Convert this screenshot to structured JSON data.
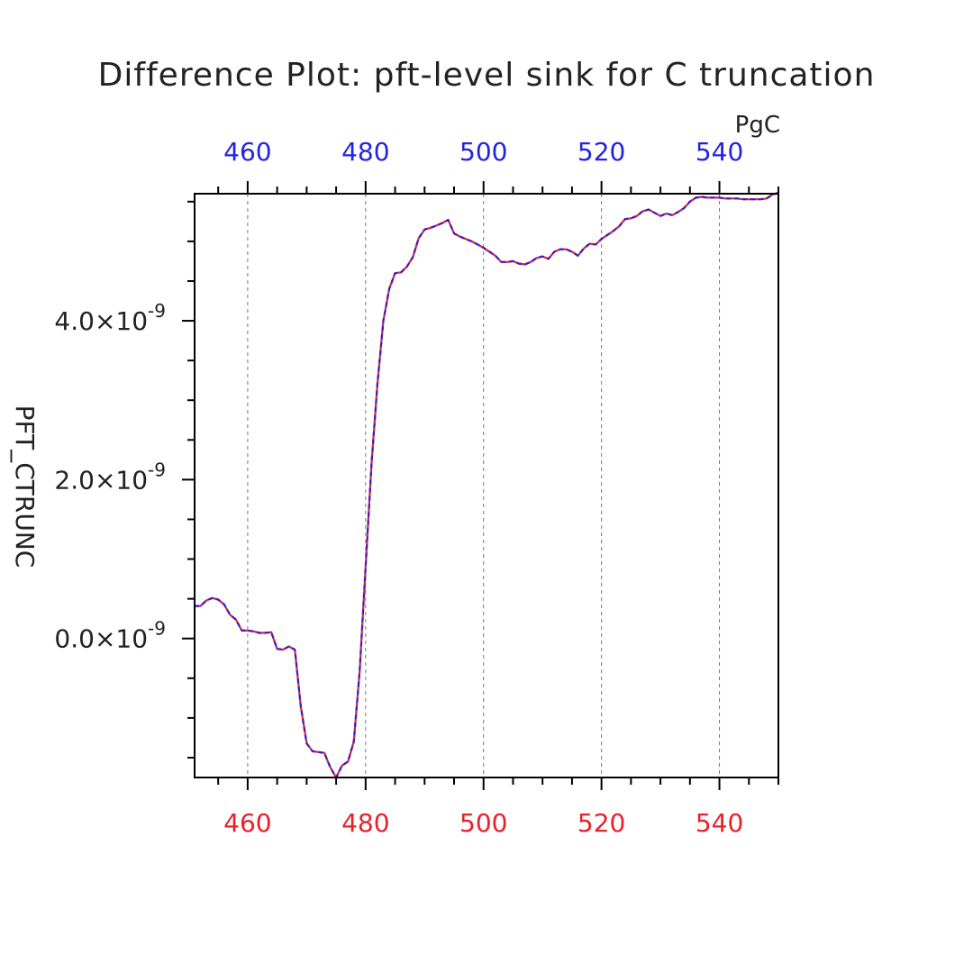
{
  "chart_data": {
    "type": "line",
    "title": "Difference Plot: pft-level sink for C truncation",
    "ylabel": "PFT_CTRUNC",
    "x_top_unit": "PgC",
    "xlim": [
      451,
      550
    ],
    "ylim": [
      -1.75e-09,
      5.6e-09
    ],
    "x_ticks": [
      460,
      480,
      500,
      520,
      540
    ],
    "x_tick_labels": [
      "460",
      "480",
      "500",
      "520",
      "540"
    ],
    "y_ticks": [
      0,
      2e-09,
      4e-09
    ],
    "y_tick_labels": [
      {
        "mantissa": "0.0",
        "times": "×10",
        "exp": "-9"
      },
      {
        "mantissa": "2.0",
        "times": "×10",
        "exp": "-9"
      },
      {
        "mantissa": "4.0",
        "times": "×10",
        "exp": "-9"
      }
    ],
    "grid": "vertical-dashed",
    "colors": {
      "bottom_axis": "#e8202a",
      "top_axis": "#2323e0",
      "series_a": "#e8202a",
      "series_b": "#2323e0"
    },
    "series": [
      {
        "x": [
          451,
          452,
          453,
          454,
          455,
          456,
          457,
          458,
          459,
          460,
          461,
          462,
          463,
          464,
          465,
          466,
          467,
          468,
          469,
          470,
          471,
          472,
          473,
          474,
          475,
          476,
          477,
          478,
          479,
          480,
          481,
          482,
          483,
          484,
          485,
          486,
          487,
          488,
          489,
          490,
          491,
          492,
          493,
          494,
          495,
          496,
          497,
          498,
          499,
          500,
          501,
          502,
          503,
          504,
          505,
          506,
          507,
          508,
          509,
          510,
          511,
          512,
          513,
          514,
          515,
          516,
          517,
          518,
          519,
          520,
          521,
          522,
          523,
          524,
          525,
          526,
          527,
          528,
          529,
          530,
          531,
          532,
          533,
          534,
          535,
          536,
          537,
          538,
          539,
          540,
          541,
          542,
          543,
          544,
          545,
          546,
          547,
          548,
          549,
          550
        ],
        "y": [
          4.1e-10,
          4.1e-10,
          4.8e-10,
          5.1e-10,
          4.9e-10,
          4.3e-10,
          3e-10,
          2.4e-10,
          1e-10,
          1e-10,
          9e-11,
          7e-11,
          7e-11,
          8e-11,
          -1.3e-10,
          -1.4e-10,
          -1e-10,
          -1.4e-10,
          -8.5e-10,
          -1.32e-09,
          -1.42e-09,
          -1.43e-09,
          -1.44e-09,
          -1.62e-09,
          -1.75e-09,
          -1.6e-09,
          -1.55e-09,
          -1.3e-09,
          -4e-10,
          9e-10,
          2.2e-09,
          3.2e-09,
          4e-09,
          4.4e-09,
          4.6e-09,
          4.61e-09,
          4.68e-09,
          4.8e-09,
          5.04e-09,
          5.15e-09,
          5.17e-09,
          5.2e-09,
          5.23e-09,
          5.27e-09,
          5.1e-09,
          5.06e-09,
          5.03e-09,
          5e-09,
          4.96e-09,
          4.92e-09,
          4.87e-09,
          4.82e-09,
          4.74e-09,
          4.74e-09,
          4.75e-09,
          4.72e-09,
          4.71e-09,
          4.74e-09,
          4.79e-09,
          4.81e-09,
          4.78e-09,
          4.87e-09,
          4.9e-09,
          4.9e-09,
          4.87e-09,
          4.82e-09,
          4.91e-09,
          4.97e-09,
          4.96e-09,
          5.03e-09,
          5.08e-09,
          5.13e-09,
          5.19e-09,
          5.28e-09,
          5.29e-09,
          5.32e-09,
          5.38e-09,
          5.4e-09,
          5.36e-09,
          5.32e-09,
          5.35e-09,
          5.33e-09,
          5.37e-09,
          5.42e-09,
          5.5e-09,
          5.55e-09,
          5.56e-09,
          5.55e-09,
          5.55e-09,
          5.55e-09,
          5.54e-09,
          5.54e-09,
          5.54e-09,
          5.53e-09,
          5.53e-09,
          5.53e-09,
          5.53e-09,
          5.54e-09,
          5.59e-09,
          5.61e-09
        ]
      }
    ]
  }
}
